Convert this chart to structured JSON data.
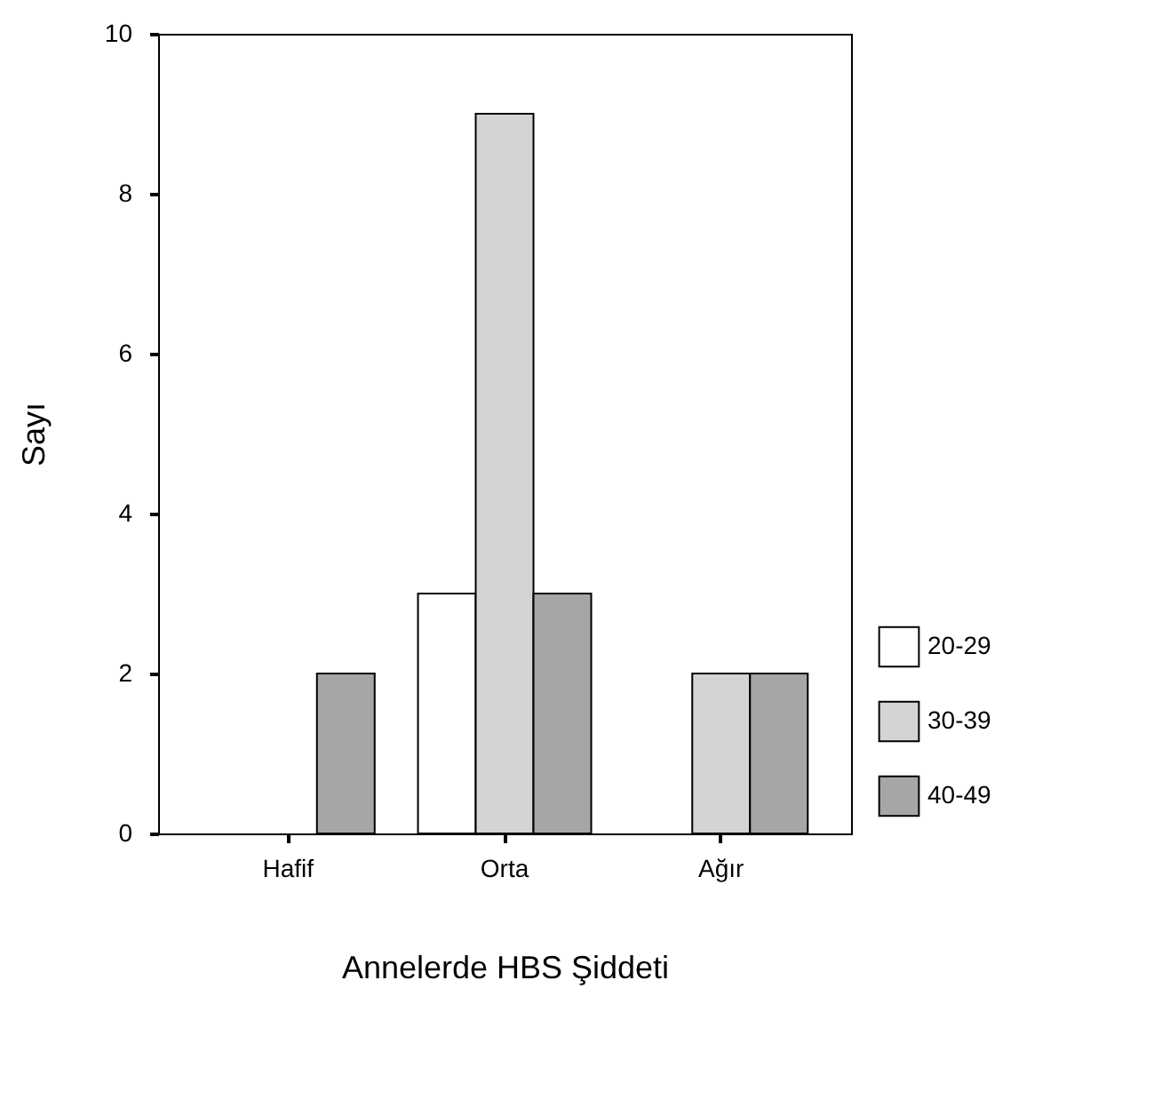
{
  "chart_data": {
    "type": "bar",
    "xlabel": "Annelerde HBS Şiddeti",
    "ylabel": "Sayı",
    "categories": [
      "Hafif",
      "Orta",
      "Ağır"
    ],
    "series": [
      {
        "name": "20-29",
        "color": "#ffffff",
        "values": [
          0,
          3,
          0
        ]
      },
      {
        "name": "30-39",
        "color": "#d4d4d4",
        "values": [
          0,
          9,
          2
        ]
      },
      {
        "name": "40-49",
        "color": "#a6a6a6",
        "values": [
          2,
          3,
          2
        ]
      }
    ],
    "ylim": [
      0,
      10
    ],
    "yticks": [
      0,
      2,
      4,
      6,
      8,
      10
    ],
    "grid": false,
    "legend": "right"
  }
}
